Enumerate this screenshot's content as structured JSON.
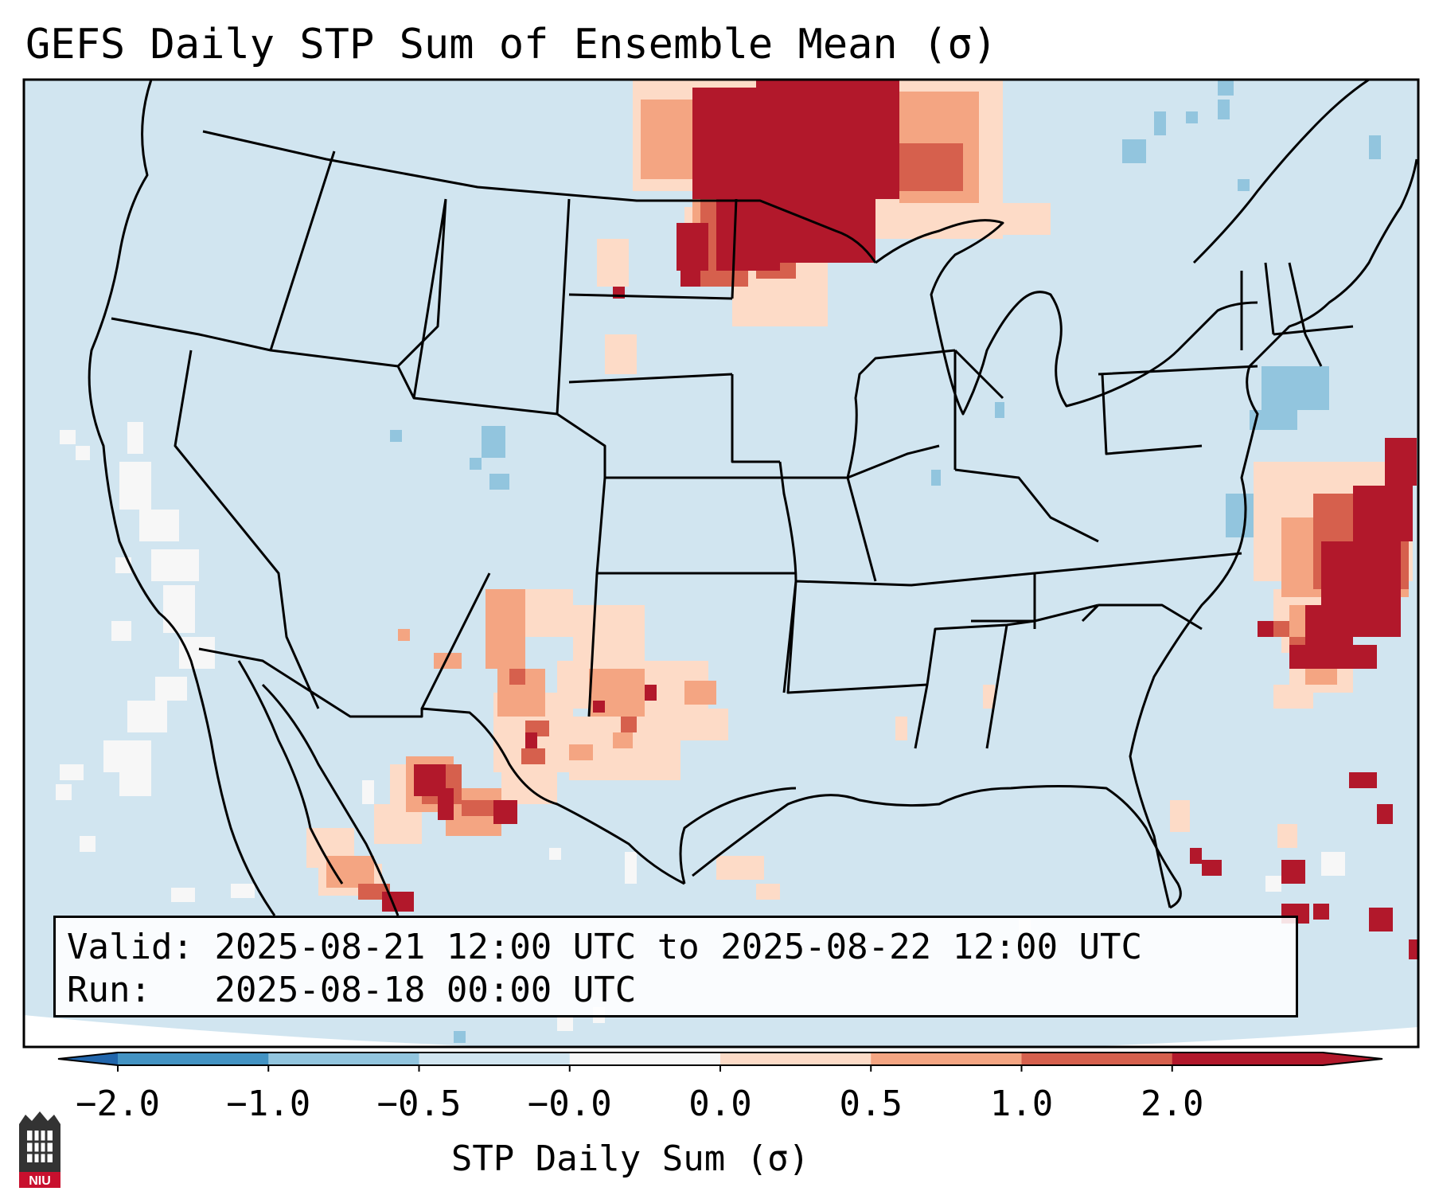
{
  "title": "GEFS Daily STP Sum of Ensemble Mean (σ)",
  "info": {
    "valid_label": "Valid:",
    "valid_value": "2025-08-21 12:00 UTC to 2025-08-22 12:00 UTC",
    "run_label": "Run:",
    "run_value": "2025-08-18 00:00 UTC"
  },
  "colorbar": {
    "label": "STP Daily Sum (σ)",
    "ticks": [
      "−2.0",
      "−1.0",
      "−0.5",
      "−0.0",
      "0.0",
      "0.5",
      "1.0",
      "2.0"
    ],
    "segment_colors": [
      "#4393c3",
      "#92c5de",
      "#d1e5f0",
      "#f7f7f7",
      "#fddbc7",
      "#f4a582",
      "#d6604d",
      "#b2182b"
    ],
    "extend_low_color": "#2166ac",
    "extend_high_color": "#b2182b"
  },
  "map": {
    "background_color": "#d1e5f0",
    "domain": "Continental United States, northern Mexico, southern Canada",
    "field": "STP daily sum anomaly (σ)"
  },
  "logo": {
    "text": "NIU"
  }
}
